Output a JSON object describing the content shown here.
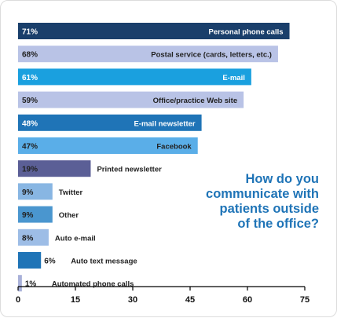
{
  "chart_data": {
    "type": "bar",
    "orientation": "horizontal",
    "title": [
      "How do you",
      "communicate with",
      "patients outside",
      "of the office?"
    ],
    "xlim": [
      0,
      75
    ],
    "xticks": [
      "0",
      "15",
      "30",
      "45",
      "60",
      "75"
    ],
    "grid": false,
    "categories": [
      "Personal phone calls",
      "Postal service (cards, letters, etc.)",
      "E-mail",
      "Office/practice Web site",
      "E-mail newsletter",
      "Facebook",
      "Printed newsletter",
      "Twitter",
      "Other",
      "Auto e-mail",
      "Auto text message",
      "Automated phone calls"
    ],
    "values": [
      71,
      68,
      61,
      59,
      48,
      47,
      19,
      9,
      9,
      8,
      6,
      1
    ],
    "value_labels": [
      "71%",
      "68%",
      "61%",
      "59%",
      "48%",
      "47%",
      "19%",
      "9%",
      "9%",
      "8%",
      "6%",
      "1%"
    ],
    "bar_colors": [
      "#1a3f6b",
      "#b9c3e6",
      "#1aa0df",
      "#b9c3e6",
      "#1f74b7",
      "#5aaee8",
      "#5b5f96",
      "#88b6e3",
      "#4a96cf",
      "#9dbde6",
      "#1f74b7",
      "#a9b1d9"
    ],
    "label_colors": [
      "#ffffff",
      "#222222",
      "#ffffff",
      "#222222",
      "#ffffff",
      "#222222",
      "#ffffff",
      "#222222",
      "#222222",
      "#222222",
      "#222222",
      "#222222"
    ],
    "label_inside": [
      true,
      true,
      true,
      true,
      true,
      true,
      false,
      false,
      false,
      false,
      false,
      false
    ],
    "title_color": "#1f74b7",
    "axis_color": "#000000"
  }
}
